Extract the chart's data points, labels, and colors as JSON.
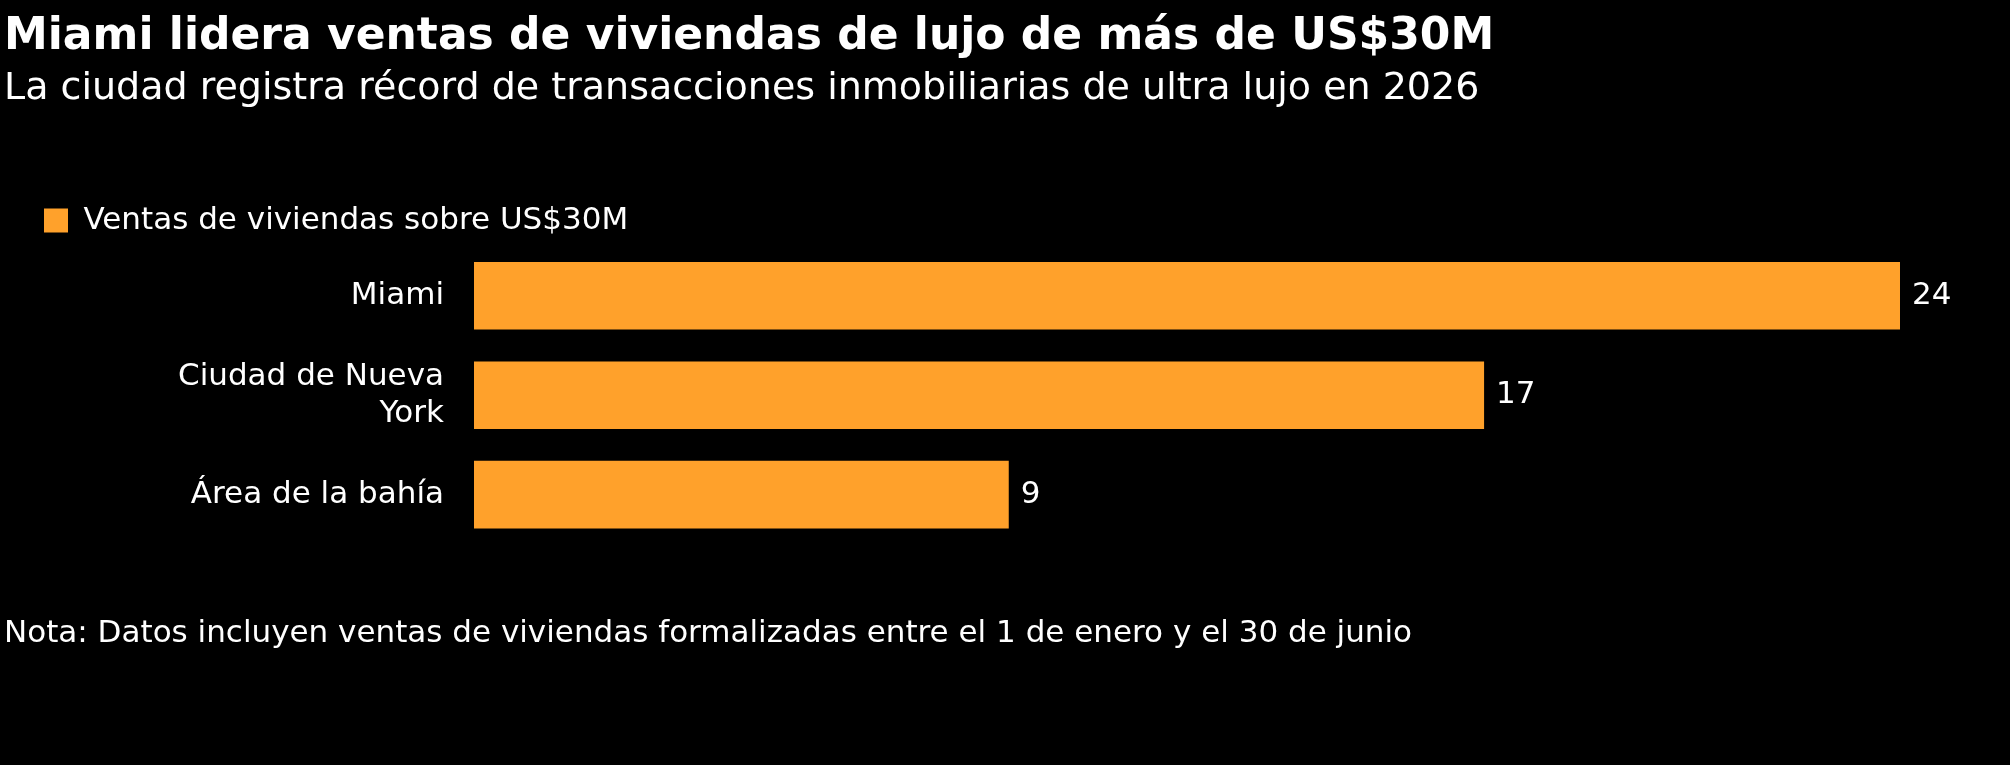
{
  "chart_data": {
    "type": "bar",
    "orientation": "horizontal",
    "title": "Miami lidera ventas de viviendas de lujo de más de US$30M",
    "subtitle": "La ciudad registra récord de transacciones inmobiliarias de ultra lujo en 2026",
    "categories": [
      "Miami",
      "Ciudad de Nueva York",
      "Área de la bahía"
    ],
    "series": [
      {
        "name": "Ventas de viviendas sobre US$30M",
        "color": "#ffa12b",
        "values": [
          24,
          17,
          9
        ]
      }
    ],
    "data_labels": true,
    "legend": "top left",
    "annotations": [
      "Nota: Datos incluyen ventas de viviendas formalizadas entre el 1 de enero y el 30 de junio"
    ]
  }
}
